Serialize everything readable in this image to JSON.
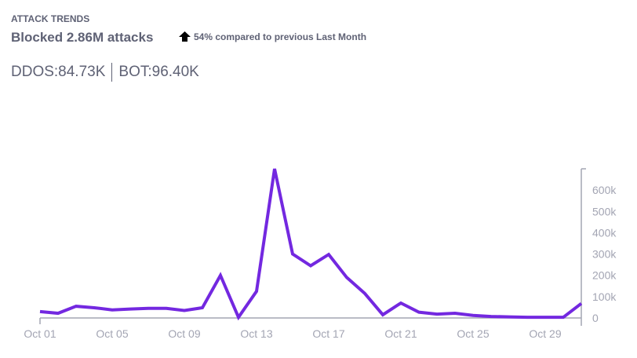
{
  "header": {
    "kicker": "ATTACK TRENDS",
    "headline": "Blocked 2.86M attacks",
    "trend_icon": "arrow-up-icon",
    "trend_text": "54% compared to previous Last Month"
  },
  "stats": {
    "ddos": "DDOS:84.73K",
    "bot": "BOT:96.40K"
  },
  "colors": {
    "line": "#7328e0",
    "axis": "#a3a5b3"
  },
  "chart_data": {
    "type": "line",
    "title": "",
    "xlabel": "",
    "ylabel": "",
    "x": [
      "Oct 01",
      "Oct 02",
      "Oct 03",
      "Oct 04",
      "Oct 05",
      "Oct 06",
      "Oct 07",
      "Oct 08",
      "Oct 09",
      "Oct 10",
      "Oct 11",
      "Oct 12",
      "Oct 13",
      "Oct 14",
      "Oct 15",
      "Oct 16",
      "Oct 17",
      "Oct 18",
      "Oct 19",
      "Oct 20",
      "Oct 21",
      "Oct 22",
      "Oct 23",
      "Oct 24",
      "Oct 25",
      "Oct 26",
      "Oct 27",
      "Oct 28",
      "Oct 29",
      "Oct 30",
      "Oct 31"
    ],
    "values": [
      30000,
      22000,
      55000,
      48000,
      38000,
      42000,
      45000,
      45000,
      35000,
      48000,
      200000,
      3000,
      125000,
      700000,
      300000,
      245000,
      298000,
      190000,
      115000,
      15000,
      70000,
      27000,
      18000,
      22000,
      12000,
      7000,
      5000,
      3000,
      3000,
      3000,
      68000
    ],
    "x_tick_labels": [
      "Oct 01",
      "Oct 05",
      "Oct 09",
      "Oct 13",
      "Oct 17",
      "Oct 21",
      "Oct 25",
      "Oct 29"
    ],
    "y_tick_labels": [
      "0",
      "100k",
      "200k",
      "300k",
      "400k",
      "500k",
      "600k"
    ],
    "y_ticks": [
      0,
      100000,
      200000,
      300000,
      400000,
      500000,
      600000
    ],
    "ylim": [
      0,
      700000
    ],
    "y_axis_side": "right",
    "grid": false,
    "legend": "none"
  }
}
